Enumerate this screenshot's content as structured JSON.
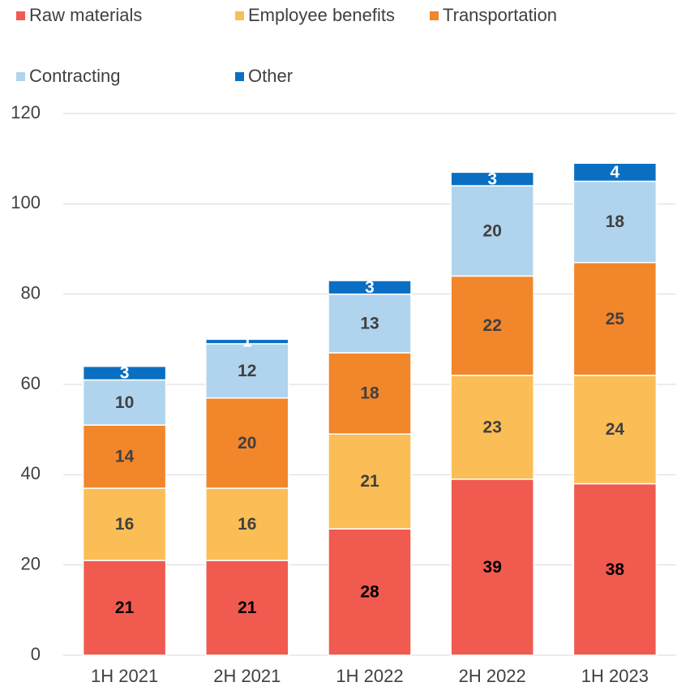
{
  "chart_data": {
    "type": "stacked_bar",
    "categories": [
      "1H 2021",
      "2H 2021",
      "1H 2022",
      "2H 2022",
      "1H 2023"
    ],
    "series": [
      {
        "name": "Raw materials",
        "color": "#f05a4f",
        "label_color": "#000000",
        "values": [
          21,
          21,
          28,
          39,
          38
        ]
      },
      {
        "name": "Employee benefits",
        "color": "#fbbd55",
        "label_color": "#404040",
        "values": [
          16,
          16,
          21,
          23,
          24
        ]
      },
      {
        "name": "Transportation",
        "color": "#f2862a",
        "label_color": "#404040",
        "values": [
          14,
          20,
          18,
          22,
          25
        ]
      },
      {
        "name": "Contracting",
        "color": "#b0d4ee",
        "label_color": "#404040",
        "values": [
          10,
          12,
          13,
          20,
          18
        ]
      },
      {
        "name": "Other",
        "color": "#0a6fc2",
        "label_color": "#ffffff",
        "values": [
          3,
          1,
          3,
          3,
          4
        ]
      }
    ],
    "ylim": [
      0,
      120
    ],
    "yticks": [
      0,
      20,
      40,
      60,
      80,
      100,
      120
    ],
    "grid": true,
    "legend": "top"
  }
}
